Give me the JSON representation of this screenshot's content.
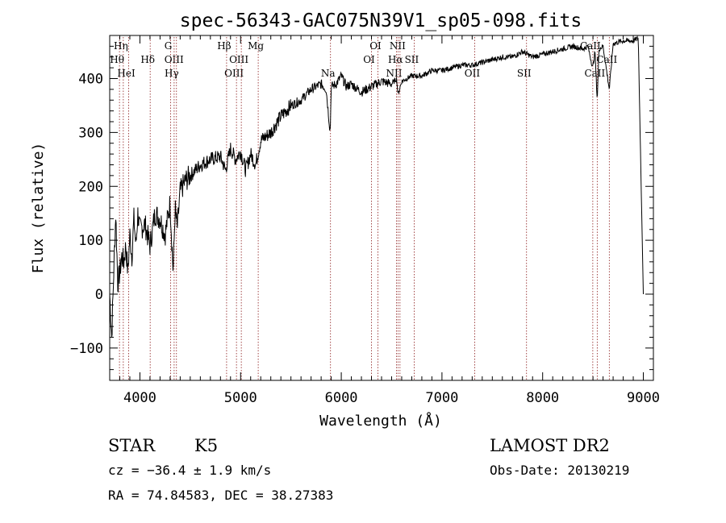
{
  "chart_data": {
    "type": "line",
    "title": "spec-56343-GAC075N39V1_sp05-098.fits",
    "xlabel": "Wavelength (Å)",
    "ylabel": "Flux (relative)",
    "xlim": [
      3700,
      9100
    ],
    "ylim": [
      -160,
      480
    ],
    "x_ticks": [
      4000,
      5000,
      6000,
      7000,
      8000,
      9000
    ],
    "x_tick_labels": [
      "4000",
      "5000",
      "6000",
      "7000",
      "8000",
      "9000"
    ],
    "y_ticks": [
      -100,
      0,
      100,
      200,
      300,
      400
    ],
    "y_tick_labels": [
      "−100",
      "0",
      "100",
      "200",
      "300",
      "400"
    ],
    "grid": false,
    "line_color": "#000000",
    "marker_color": "#8b1a1a",
    "series": [
      {
        "x": [
          3700,
          3720,
          3740,
          3760,
          3780,
          3800,
          3820,
          3840,
          3860,
          3880,
          3900,
          3920,
          3940,
          3960,
          3980,
          4000,
          4050,
          4100,
          4150,
          4200,
          4250,
          4300,
          4330,
          4350,
          4370,
          4400,
          4450,
          4500,
          4600,
          4700,
          4800,
          4850,
          4900,
          4950,
          5000,
          5050,
          5100,
          5150,
          5200,
          5300,
          5400,
          5500,
          5600,
          5700,
          5800,
          5850,
          5890,
          5900,
          5950,
          6000,
          6050,
          6100,
          6200,
          6300,
          6400,
          6500,
          6550,
          6563,
          6600,
          6700,
          6800,
          6900,
          7000,
          7100,
          7200,
          7300,
          7400,
          7500,
          7600,
          7700,
          7800,
          7850,
          7900,
          8000,
          8100,
          8200,
          8300,
          8400,
          8450,
          8498,
          8520,
          8542,
          8560,
          8600,
          8662,
          8700,
          8800,
          8900,
          8950,
          9000
        ],
        "y": [
          0,
          -80,
          40,
          150,
          20,
          40,
          70,
          60,
          90,
          40,
          110,
          70,
          140,
          90,
          150,
          120,
          130,
          90,
          150,
          140,
          110,
          170,
          40,
          160,
          120,
          190,
          210,
          220,
          240,
          250,
          255,
          230,
          270,
          250,
          265,
          230,
          260,
          240,
          285,
          300,
          330,
          350,
          360,
          380,
          390,
          380,
          300,
          385,
          390,
          405,
          385,
          390,
          375,
          385,
          395,
          390,
          400,
          370,
          395,
          405,
          405,
          415,
          415,
          420,
          425,
          425,
          430,
          435,
          440,
          440,
          450,
          445,
          440,
          445,
          450,
          455,
          460,
          455,
          460,
          420,
          450,
          360,
          455,
          460,
          380,
          465,
          470,
          470,
          475,
          0
        ]
      }
    ],
    "line_markers": [
      {
        "label": "Hη",
        "x": 3835,
        "row": 0
      },
      {
        "label": "Hθ",
        "x": 3797,
        "row": 1
      },
      {
        "label": "HeI",
        "x": 3889,
        "row": 2
      },
      {
        "label": "Hδ",
        "x": 4102,
        "row": 1
      },
      {
        "label": "G",
        "x": 4305,
        "row": 0
      },
      {
        "label": "OIII",
        "x": 4363,
        "row": 1
      },
      {
        "label": "Hγ",
        "x": 4340,
        "row": 2
      },
      {
        "label": "Hβ",
        "x": 4861,
        "row": 0
      },
      {
        "label": "OIII",
        "x": 4959,
        "row": 2
      },
      {
        "label": "OIII",
        "x": 5007,
        "row": 1
      },
      {
        "label": "Mg",
        "x": 5175,
        "row": 0
      },
      {
        "label": "Na",
        "x": 5893,
        "row": 2
      },
      {
        "label": "OI",
        "x": 6300,
        "row": 1
      },
      {
        "label": "OI",
        "x": 6364,
        "row": 0
      },
      {
        "label": "NII",
        "x": 6548,
        "row": 2
      },
      {
        "label": "Hα",
        "x": 6563,
        "row": 1
      },
      {
        "label": "NII",
        "x": 6583,
        "row": 0
      },
      {
        "label": "SII",
        "x": 6724,
        "row": 1
      },
      {
        "label": "OII",
        "x": 7325,
        "row": 2
      },
      {
        "label": "SII",
        "x": 7840,
        "row": 2
      },
      {
        "label": "CaII",
        "x": 8498,
        "row": 0
      },
      {
        "label": "CaII",
        "x": 8542,
        "row": 2
      },
      {
        "label": "CaII",
        "x": 8662,
        "row": 1
      }
    ]
  },
  "info": {
    "object_class": "STAR",
    "subclass": "K5",
    "survey": "LAMOST DR2",
    "redshift_text": "cz = −36.4 ± 1.9 km/s",
    "obs_date_text": "Obs-Date: 20130219",
    "coords_text": "RA =  74.84583, DEC =  38.27383"
  }
}
